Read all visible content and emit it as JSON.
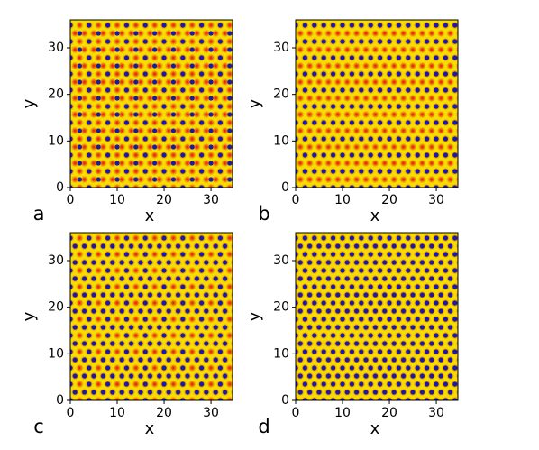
{
  "chart_data": [
    {
      "type": "image",
      "panel_label": "a",
      "xlabel": "x",
      "ylabel": "y",
      "xlim": [
        0,
        34.6
      ],
      "ylim": [
        0,
        36
      ],
      "xticks": [
        0,
        10,
        20,
        30
      ],
      "yticks": [
        0,
        10,
        20,
        30
      ]
    },
    {
      "type": "image",
      "panel_label": "b",
      "xlabel": "x",
      "ylabel": "y",
      "xlim": [
        0,
        34.6
      ],
      "ylim": [
        0,
        36
      ],
      "xticks": [
        0,
        10,
        20,
        30
      ],
      "yticks": [
        0,
        10,
        20,
        30
      ]
    },
    {
      "type": "image",
      "panel_label": "c",
      "xlabel": "x",
      "ylabel": "y",
      "xlim": [
        0,
        34.6
      ],
      "ylim": [
        0,
        36
      ],
      "xticks": [
        0,
        10,
        20,
        30
      ],
      "yticks": [
        0,
        10,
        20,
        30
      ]
    },
    {
      "type": "image",
      "panel_label": "d",
      "xlabel": "x",
      "ylabel": "y",
      "xlim": [
        0,
        34.6
      ],
      "ylim": [
        0,
        36
      ],
      "xticks": [
        0,
        10,
        20,
        30
      ],
      "yticks": [
        0,
        10,
        20,
        30
      ]
    }
  ]
}
